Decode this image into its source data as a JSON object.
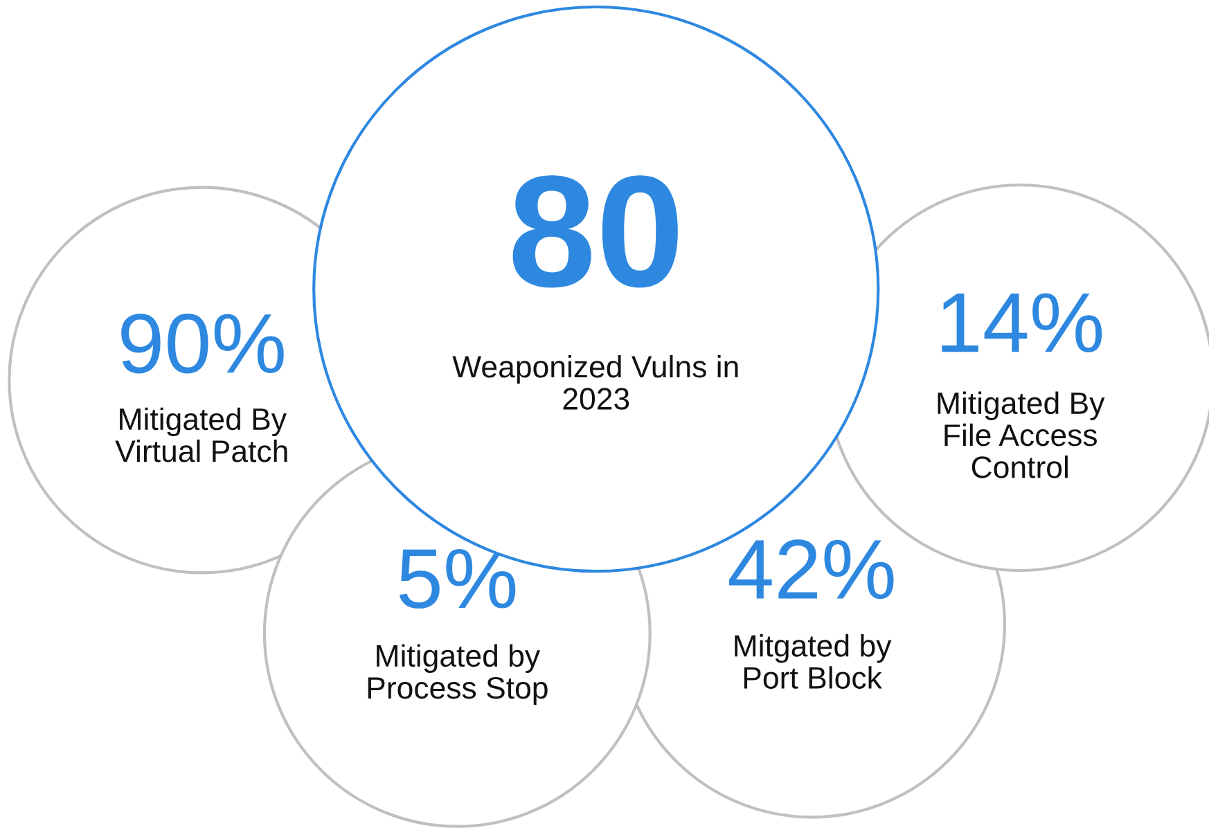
{
  "chart_data": {
    "type": "other",
    "categories": [
      "Weaponized Vulns in\n2023",
      "Mitigated By\nVirtual Patch",
      "Mitigated By\nFile Access\nControl",
      "Mitigated by\nProcess Stop",
      "Mitgated by\nPort Block"
    ],
    "values": [
      80,
      90,
      14,
      5,
      42
    ],
    "value_labels": [
      "80",
      "90%",
      "14%",
      "5%",
      "42%"
    ],
    "colors": [
      "#2e88e0",
      "#c0c0c0",
      "#c0c0c0",
      "#c0c0c0",
      "#c0c0c0"
    ]
  }
}
